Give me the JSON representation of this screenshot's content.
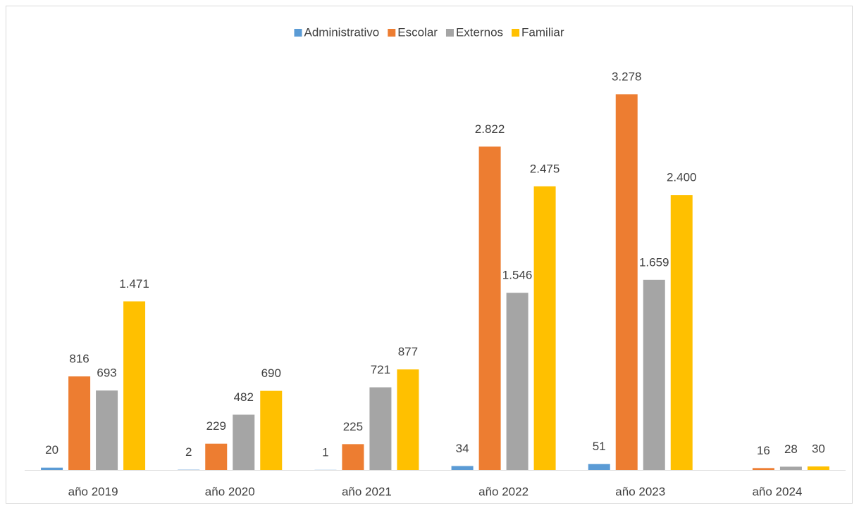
{
  "chart_data": {
    "type": "bar",
    "categories": [
      "año 2019",
      "año 2020",
      "año 2021",
      "año 2022",
      "año 2023",
      "año 2024"
    ],
    "series": [
      {
        "name": "Administrativo",
        "color": "#5b9bd5",
        "values": [
          20,
          2,
          1,
          34,
          51,
          null
        ],
        "value_labels": [
          "20",
          "2",
          "1",
          "34",
          "51",
          null
        ]
      },
      {
        "name": "Escolar",
        "color": "#ed7d31",
        "values": [
          816,
          229,
          225,
          2822,
          3278,
          16
        ],
        "value_labels": [
          "816",
          "229",
          "225",
          "2.822",
          "3.278",
          "16"
        ]
      },
      {
        "name": "Externos",
        "color": "#a5a5a5",
        "values": [
          693,
          482,
          721,
          1546,
          1659,
          28
        ],
        "value_labels": [
          "693",
          "482",
          "721",
          "1.546",
          "1.659",
          "28"
        ]
      },
      {
        "name": "Familiar",
        "color": "#ffc000",
        "values": [
          1471,
          690,
          877,
          2475,
          2400,
          30
        ],
        "value_labels": [
          "1.471",
          "690",
          "877",
          "2.475",
          "2.400",
          "30"
        ]
      }
    ],
    "ylim": [
      0,
      3500
    ],
    "legend": "top"
  }
}
